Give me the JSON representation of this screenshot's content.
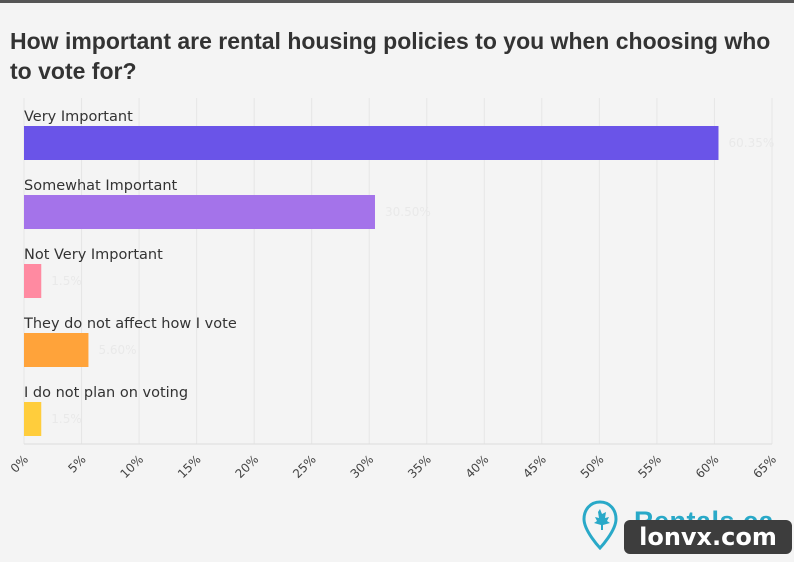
{
  "chart_data": {
    "type": "bar",
    "orientation": "horizontal",
    "title": "How important are rental housing policies to you when choosing who to vote for?",
    "categories": [
      "Very Important",
      "Somewhat Important",
      "Not Very Important",
      "They do not affect how I vote",
      "I do not plan on voting"
    ],
    "values": [
      60.35,
      30.5,
      1.5,
      5.6,
      1.5
    ],
    "value_labels": [
      "60.35%",
      "30.50%",
      "1.5%",
      "5.60%",
      "1.5%"
    ],
    "colors": [
      "#6a54e8",
      "#a473ea",
      "#ff8aa1",
      "#ffa33a",
      "#ffcd3c"
    ],
    "xlim": [
      0,
      65
    ],
    "xticks": [
      0,
      5,
      10,
      15,
      20,
      25,
      30,
      35,
      40,
      45,
      50,
      55,
      60,
      65
    ],
    "tick_suffix": "%",
    "grid": true,
    "xlabel": "",
    "ylabel": ""
  },
  "brand": {
    "name": "Rentals.ca",
    "color": "#29a9c8",
    "icon": "location-pin-maple-leaf-icon"
  },
  "watermark": {
    "text": "lonvx.com"
  }
}
